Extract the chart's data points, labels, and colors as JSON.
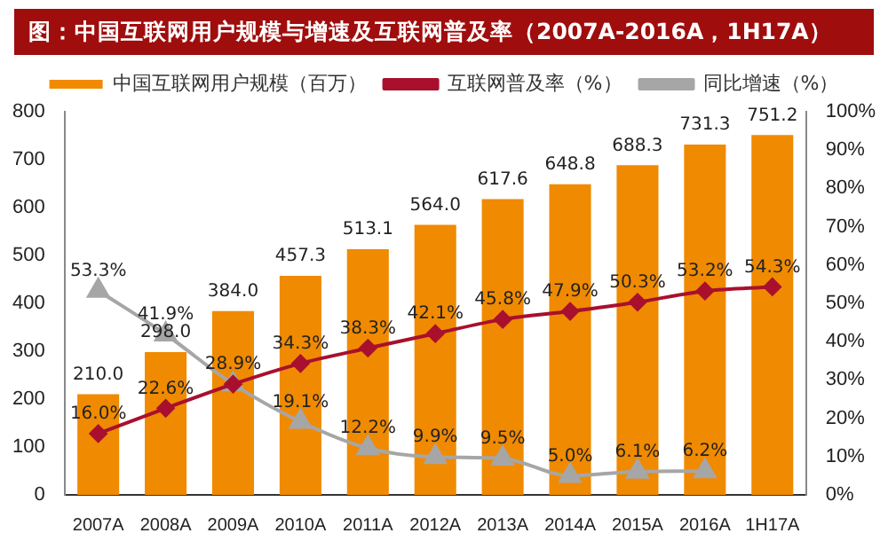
{
  "chart_data": {
    "type": "bar",
    "title": "图：中国互联网用户规模与增速及互联网普及率（2007A-2016A，1H17A）",
    "categories": [
      "2007A",
      "2008A",
      "2009A",
      "2010A",
      "2011A",
      "2012A",
      "2013A",
      "2014A",
      "2015A",
      "2016A",
      "1H17A"
    ],
    "series": [
      {
        "name": "中国互联网用户规模（百万）",
        "color": "#f08a00",
        "values": [
          210.0,
          298.0,
          384.0,
          457.3,
          513.1,
          564.0,
          617.6,
          648.8,
          688.3,
          731.3,
          751.2
        ],
        "value_labels": [
          "210.0",
          "298.0",
          "384.0",
          "457.3",
          "513.1",
          "564.0",
          "617.6",
          "648.8",
          "688.3",
          "731.3",
          "751.2"
        ]
      },
      {
        "name": "互联网普及率（%）",
        "type": "line",
        "axis": "y2",
        "color": "#a8102e",
        "marker": "diamond",
        "values": [
          16.0,
          22.6,
          28.9,
          34.3,
          38.3,
          42.1,
          45.8,
          47.9,
          50.3,
          53.2,
          54.3
        ],
        "value_labels": [
          "16.0%",
          "22.6%",
          "28.9%",
          "34.3%",
          "38.3%",
          "42.1%",
          "45.8%",
          "47.9%",
          "50.3%",
          "53.2%",
          "54.3%"
        ]
      },
      {
        "name": "同比增速（%）",
        "type": "line",
        "axis": "y2",
        "color": "#a6a6a6",
        "marker": "triangle",
        "values": [
          53.3,
          41.9,
          28.9,
          19.1,
          12.2,
          9.9,
          9.5,
          5.0,
          6.1,
          6.2,
          null
        ],
        "value_labels": [
          "53.3%",
          "41.9%",
          null,
          "19.1%",
          "12.2%",
          "9.9%",
          "9.5%",
          "5.0%",
          "6.1%",
          "6.2%",
          null
        ]
      }
    ],
    "ylim": [
      0,
      800
    ],
    "yticks": [
      0,
      100,
      200,
      300,
      400,
      500,
      600,
      700,
      800
    ],
    "y2lim": [
      0,
      100
    ],
    "y2ticks": [
      {
        "value": 0,
        "label": "0%"
      },
      {
        "value": 10,
        "label": "10%"
      },
      {
        "value": 20,
        "label": "20%"
      },
      {
        "value": 30,
        "label": "30%"
      },
      {
        "value": 40,
        "label": "40%"
      },
      {
        "value": 50,
        "label": "50%"
      },
      {
        "value": 60,
        "label": "60%"
      },
      {
        "value": 70,
        "label": "70%"
      },
      {
        "value": 80,
        "label": "80%"
      },
      {
        "value": 90,
        "label": "90%"
      },
      {
        "value": 100,
        "label": "100%"
      }
    ],
    "grid": false,
    "legend": "top"
  }
}
